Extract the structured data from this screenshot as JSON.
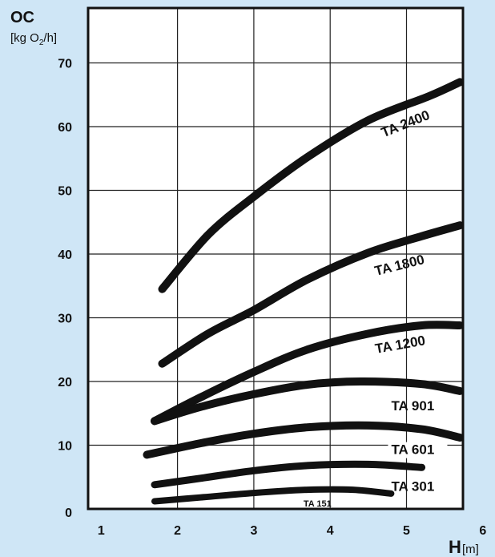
{
  "chart_data": {
    "type": "line",
    "y_title": "OC",
    "y_unit_main": "[kg O",
    "y_unit_sub": "2",
    "y_unit_end": "/h]",
    "x_title": "H",
    "x_unit": "[m]",
    "xlim": [
      1,
      6
    ],
    "ylim": [
      0,
      70
    ],
    "x_ticks": [
      "1",
      "2",
      "3",
      "4",
      "5",
      "6"
    ],
    "y_ticks": [
      "0",
      "10",
      "20",
      "30",
      "40",
      "50",
      "60",
      "70"
    ],
    "grid": true,
    "series": [
      {
        "name": "TA 2400",
        "points": [
          [
            1.8,
            34.5
          ],
          [
            2.4,
            43
          ],
          [
            3,
            49
          ],
          [
            3.7,
            55.2
          ],
          [
            4.5,
            61
          ],
          [
            5.3,
            64.8
          ],
          [
            5.7,
            67
          ]
        ]
      },
      {
        "name": "TA 1800",
        "points": [
          [
            1.8,
            22.8
          ],
          [
            2.4,
            27.5
          ],
          [
            3,
            31.2
          ],
          [
            3.7,
            36
          ],
          [
            4.5,
            40.2
          ],
          [
            5.2,
            42.8
          ],
          [
            5.7,
            44.5
          ]
        ]
      },
      {
        "name": "TA 1200",
        "points": [
          [
            1.7,
            13.8
          ],
          [
            2.3,
            17.5
          ],
          [
            3,
            21.5
          ],
          [
            3.7,
            25
          ],
          [
            4.5,
            27.5
          ],
          [
            5.2,
            28.8
          ],
          [
            5.7,
            28.8
          ]
        ]
      },
      {
        "name": "TA 901",
        "points": [
          [
            1.7,
            13.8
          ],
          [
            2.3,
            16
          ],
          [
            3,
            18
          ],
          [
            3.7,
            19.5
          ],
          [
            4.4,
            20
          ],
          [
            5.2,
            19.6
          ],
          [
            5.7,
            18.5
          ]
        ]
      },
      {
        "name": "TA 601",
        "points": [
          [
            1.6,
            8.5
          ],
          [
            2.3,
            10.3
          ],
          [
            3,
            11.8
          ],
          [
            3.7,
            12.8
          ],
          [
            4.5,
            13.1
          ],
          [
            5.2,
            12.5
          ],
          [
            5.7,
            11.2
          ]
        ]
      },
      {
        "name": "TA 301",
        "points": [
          [
            1.7,
            3.8
          ],
          [
            2.3,
            4.8
          ],
          [
            3,
            6
          ],
          [
            3.7,
            6.8
          ],
          [
            4.5,
            7
          ],
          [
            5.2,
            6.5
          ]
        ]
      },
      {
        "name": "TA 151",
        "points": [
          [
            1.7,
            1.2
          ],
          [
            2.3,
            1.8
          ],
          [
            3,
            2.5
          ],
          [
            3.7,
            3
          ],
          [
            4.3,
            3
          ],
          [
            4.8,
            2.4
          ]
        ]
      }
    ]
  }
}
